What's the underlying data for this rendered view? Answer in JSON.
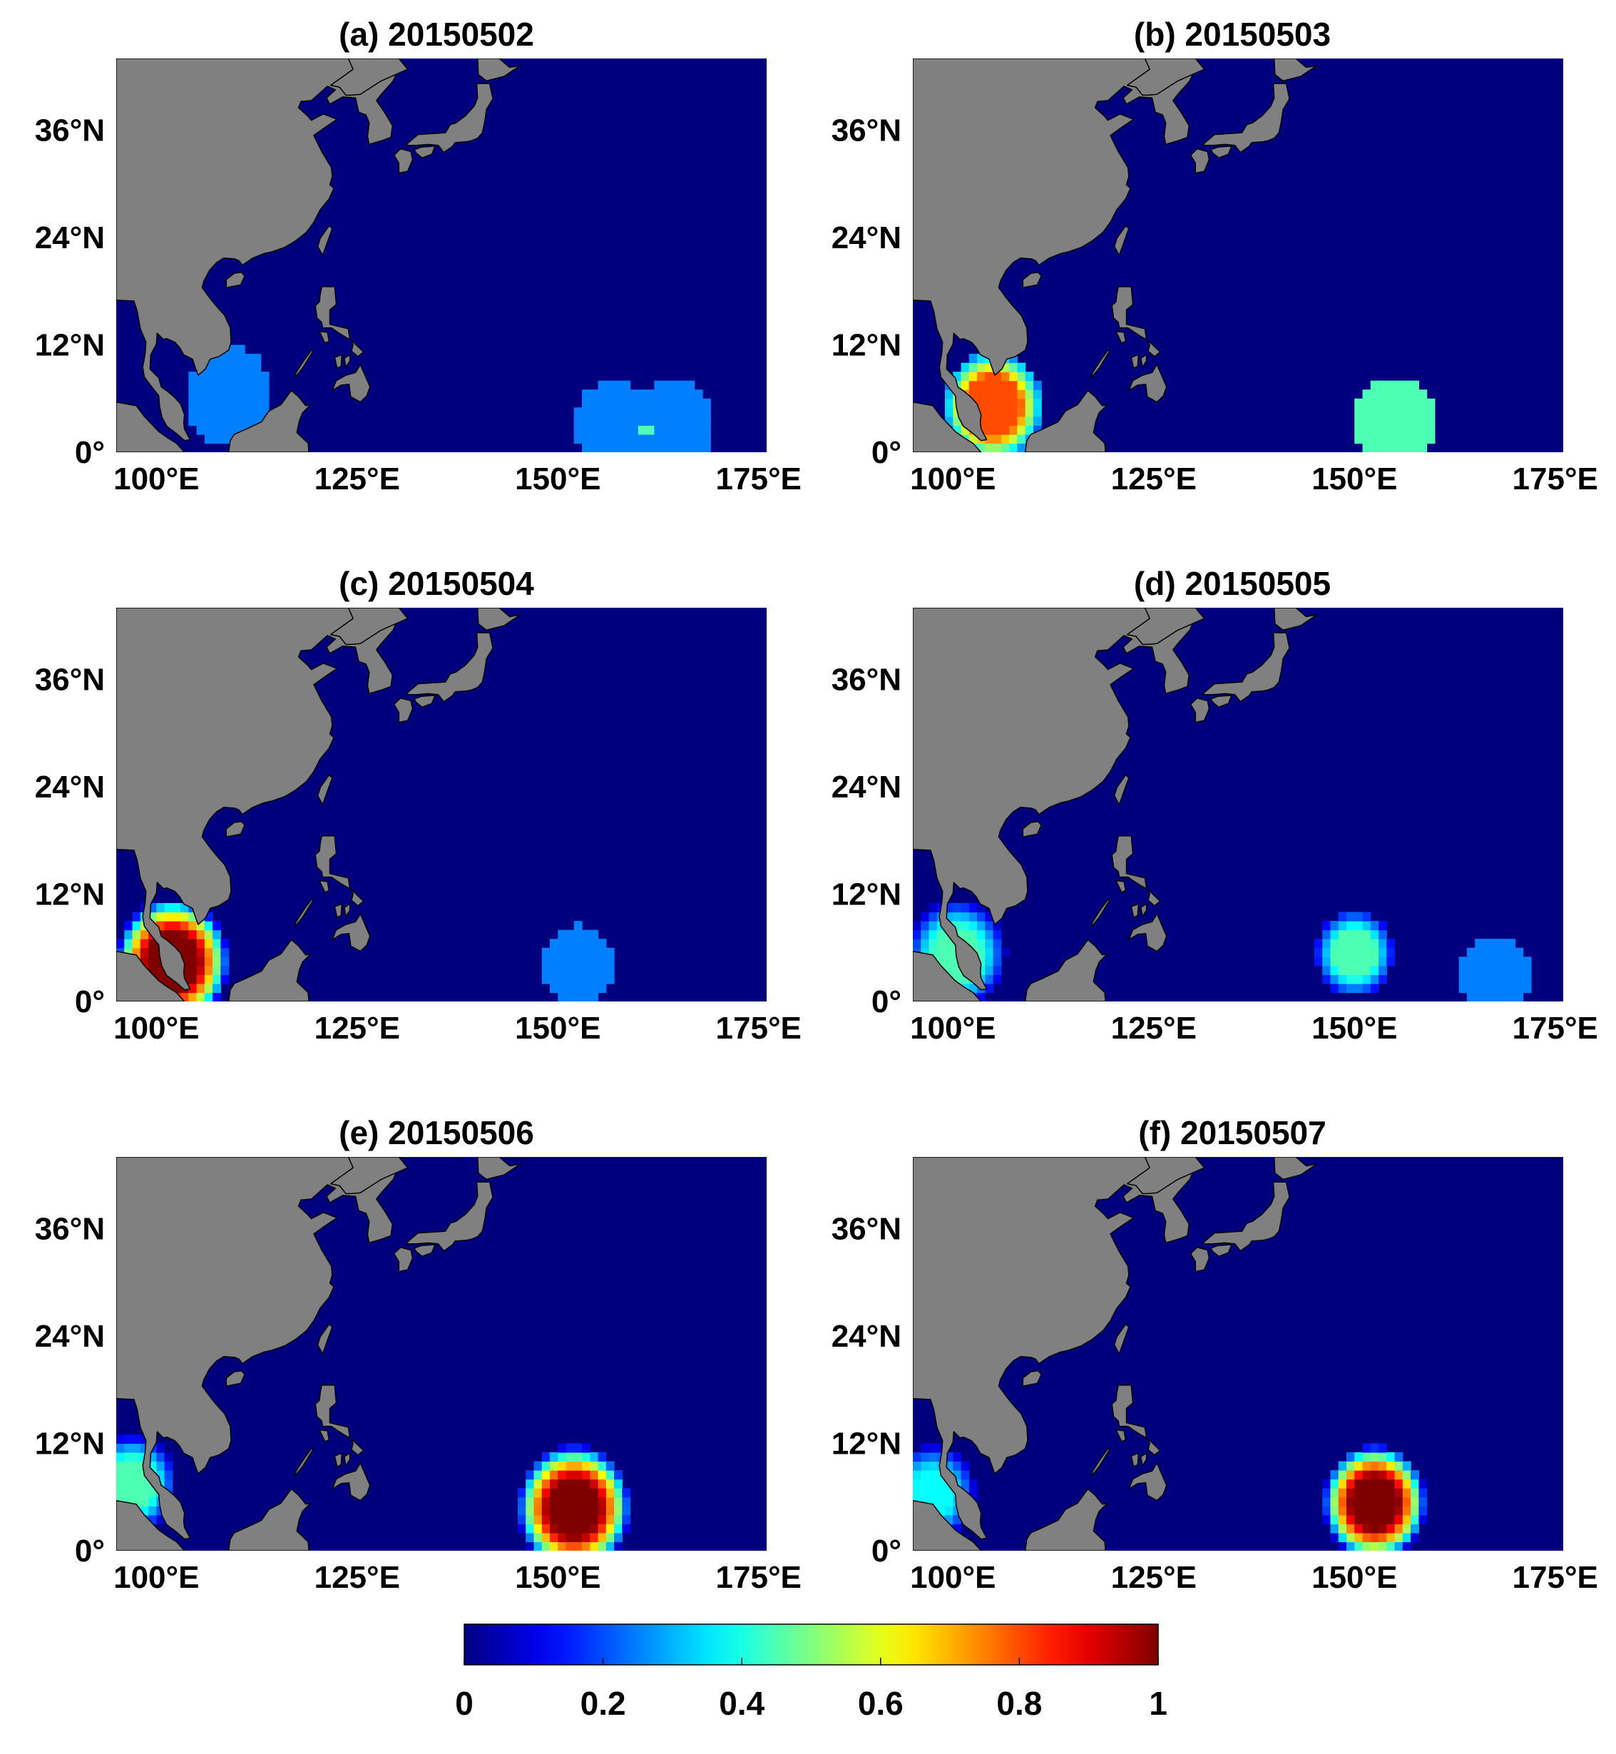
{
  "figure": {
    "land_color": "#808080",
    "ocean_color": "#00007f",
    "coast_color": "#000000"
  },
  "colorbar": {
    "colormap": "jet",
    "min": 0,
    "max": 1,
    "ticks": [
      0,
      0.2,
      0.4,
      0.6,
      0.8,
      1
    ],
    "tick_labels": [
      "0",
      "0.2",
      "0.4",
      "0.6",
      "0.8",
      "1"
    ]
  },
  "chart_data": [
    {
      "type": "heatmap",
      "title": "(a) 20150502",
      "xlim": [
        95,
        176
      ],
      "ylim": [
        0,
        44
      ],
      "xticks": [
        100,
        125,
        150,
        175
      ],
      "xtick_labels": [
        "100°E",
        "125°E",
        "150°E",
        "175°E"
      ],
      "yticks": [
        0,
        12,
        24,
        36
      ],
      "ytick_labels": [
        "0°",
        "12°N",
        "24°N",
        "36°N"
      ],
      "blobs": [
        {
          "lon": 109,
          "lat": 6.3,
          "r": 5.5,
          "vmax": 0.25,
          "shape": "flat"
        },
        {
          "lon": 157,
          "lat": 3,
          "r": 5,
          "vmax": 0.25,
          "shape": "flat"
        },
        {
          "lon": 164.5,
          "lat": 3,
          "r": 5,
          "vmax": 0.25,
          "shape": "flat"
        },
        {
          "lon": 161,
          "lat": 2.4,
          "r": 1,
          "vmax": 0.45,
          "shape": "flat"
        }
      ]
    },
    {
      "type": "heatmap",
      "title": "(b) 20150503",
      "xlim": [
        95,
        176
      ],
      "ylim": [
        0,
        44
      ],
      "xticks": [
        100,
        125,
        150,
        175
      ],
      "xtick_labels": [
        "100°E",
        "125°E",
        "150°E",
        "175°E"
      ],
      "yticks": [
        0,
        12,
        24,
        36
      ],
      "ytick_labels": [
        "0°",
        "12°N",
        "24°N",
        "36°N"
      ],
      "blobs": [
        {
          "lon": 105,
          "lat": 5.2,
          "r": 6.2,
          "vmax": 0.8,
          "shape": "plateau"
        },
        {
          "lon": 155,
          "lat": 3.4,
          "r": 5,
          "vmax": 0.45,
          "shape": "flat"
        }
      ]
    },
    {
      "type": "heatmap",
      "title": "(c) 20150504",
      "xlim": [
        95,
        176
      ],
      "ylim": [
        0,
        44
      ],
      "xticks": [
        100,
        125,
        150,
        175
      ],
      "xtick_labels": [
        "100°E",
        "125°E",
        "150°E",
        "175°E"
      ],
      "yticks": [
        0,
        12,
        24,
        36
      ],
      "ytick_labels": [
        "0°",
        "12°N",
        "24°N",
        "36°N"
      ],
      "blobs": [
        {
          "lon": 102,
          "lat": 4.5,
          "r": 7,
          "vmax": 1.0,
          "shape": "peak"
        },
        {
          "lon": 152.5,
          "lat": 4.2,
          "r": 4.4,
          "vmax": 0.25,
          "shape": "flat"
        }
      ]
    },
    {
      "type": "heatmap",
      "title": "(d) 20150505",
      "xlim": [
        95,
        176
      ],
      "ylim": [
        0,
        44
      ],
      "xticks": [
        100,
        125,
        150,
        175
      ],
      "xtick_labels": [
        "100°E",
        "125°E",
        "150°E",
        "175°E"
      ],
      "yticks": [
        0,
        12,
        24,
        36
      ],
      "ytick_labels": [
        "0°",
        "12°N",
        "24°N",
        "36°N"
      ],
      "blobs": [
        {
          "lon": 100.5,
          "lat": 5.3,
          "r": 6.2,
          "vmax": 0.45,
          "shape": "peak"
        },
        {
          "lon": 150,
          "lat": 5.4,
          "r": 4.8,
          "vmax": 0.45,
          "shape": "plateau"
        },
        {
          "lon": 167.5,
          "lat": 2.6,
          "r": 4.5,
          "vmax": 0.25,
          "shape": "flat"
        }
      ]
    },
    {
      "type": "heatmap",
      "title": "(e) 20150506",
      "xlim": [
        95,
        176
      ],
      "ylim": [
        0,
        44
      ],
      "xticks": [
        100,
        125,
        150,
        175
      ],
      "xtick_labels": [
        "100°E",
        "125°E",
        "150°E",
        "175°E"
      ],
      "yticks": [
        0,
        12,
        24,
        36
      ],
      "ytick_labels": [
        "0°",
        "12°N",
        "24°N",
        "36°N"
      ],
      "blobs": [
        {
          "lon": 97,
          "lat": 7.5,
          "r": 5.6,
          "vmax": 0.45,
          "shape": "peak"
        },
        {
          "lon": 152,
          "lat": 4.8,
          "r": 7,
          "vmax": 1.0,
          "shape": "peak"
        }
      ]
    },
    {
      "type": "heatmap",
      "title": "(f) 20150507",
      "xlim": [
        95,
        176
      ],
      "ylim": [
        0,
        44
      ],
      "xticks": [
        100,
        125,
        150,
        175
      ],
      "xtick_labels": [
        "100°E",
        "125°E",
        "150°E",
        "175°E"
      ],
      "yticks": [
        0,
        12,
        24,
        36
      ],
      "ytick_labels": [
        "0°",
        "12°N",
        "24°N",
        "36°N"
      ],
      "blobs": [
        {
          "lon": 97.5,
          "lat": 6.5,
          "r": 5.5,
          "vmax": 0.38,
          "shape": "peak"
        },
        {
          "lon": 152.5,
          "lat": 5.4,
          "r": 6.4,
          "vmax": 1.0,
          "shape": "peak"
        }
      ]
    }
  ]
}
